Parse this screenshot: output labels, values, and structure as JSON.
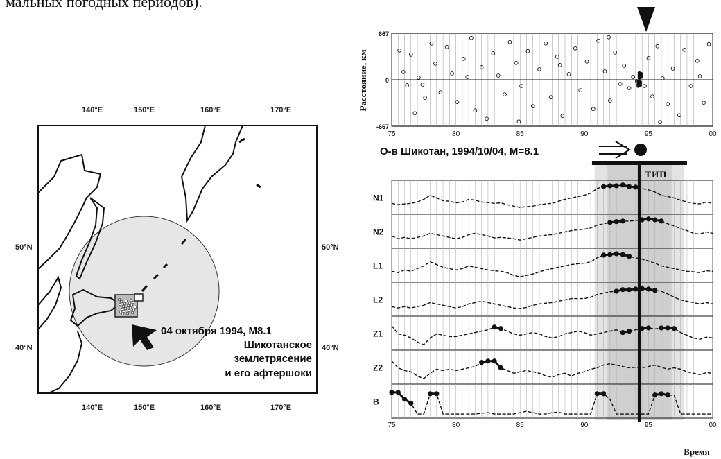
{
  "caption_fragment": "мальных погодных периодов).",
  "map": {
    "lon_labels": [
      "140°E",
      "150°E",
      "160°E",
      "170°E"
    ],
    "lat_labels": [
      "50°N",
      "40°N"
    ],
    "annotation": [
      "04 октября 1994, M8.1",
      "Шикотанское",
      "землетрясение",
      "и его афтершоки"
    ]
  },
  "event_label": "О-в Шикотан, 1994/10/04, M=8.1",
  "tip_label": "ТИП",
  "x_axis_title": "Время",
  "chart_data": [
    {
      "type": "scatter",
      "title": "",
      "ylabel": "Расстояние, км",
      "xlabel": "",
      "xlim": [
        75,
        100
      ],
      "ylim": [
        -667,
        667
      ],
      "x_ticks": [
        "75",
        "80",
        "85",
        "90",
        "95",
        "00"
      ],
      "y_ticks": [
        "667",
        "0",
        "-667"
      ],
      "marked_event_x": 94.3,
      "description_note": null,
      "events": [
        [
          75.6,
          420
        ],
        [
          75.9,
          110
        ],
        [
          76.2,
          -80
        ],
        [
          76.5,
          360
        ],
        [
          77.1,
          30
        ],
        [
          77.4,
          -70
        ],
        [
          77.6,
          -260
        ],
        [
          78.1,
          520
        ],
        [
          78.4,
          230
        ],
        [
          78.8,
          -180
        ],
        [
          79.3,
          470
        ],
        [
          79.7,
          90
        ],
        [
          80.1,
          -320
        ],
        [
          80.6,
          300
        ],
        [
          81.2,
          600
        ],
        [
          81.5,
          -440
        ],
        [
          82.0,
          180
        ],
        [
          82.4,
          -560
        ],
        [
          82.9,
          380
        ],
        [
          83.3,
          60
        ],
        [
          83.8,
          -210
        ],
        [
          84.2,
          540
        ],
        [
          84.7,
          240
        ],
        [
          85.1,
          -90
        ],
        [
          85.6,
          410
        ],
        [
          86.0,
          -380
        ],
        [
          86.5,
          150
        ],
        [
          87.0,
          520
        ],
        [
          87.4,
          -250
        ],
        [
          87.9,
          330
        ],
        [
          88.3,
          -520
        ],
        [
          88.8,
          80
        ],
        [
          89.3,
          450
        ],
        [
          89.7,
          -150
        ],
        [
          90.2,
          260
        ],
        [
          90.7,
          -420
        ],
        [
          91.1,
          560
        ],
        [
          91.6,
          120
        ],
        [
          92.0,
          -300
        ],
        [
          92.4,
          390
        ],
        [
          92.8,
          -60
        ],
        [
          93.1,
          200
        ],
        [
          93.5,
          -120
        ],
        [
          93.8,
          40
        ],
        [
          94.1,
          -20
        ],
        [
          94.4,
          80
        ],
        [
          94.7,
          -90
        ],
        [
          95.0,
          310
        ],
        [
          95.3,
          -240
        ],
        [
          95.7,
          480
        ],
        [
          96.1,
          20
        ],
        [
          96.5,
          -350
        ],
        [
          96.9,
          160
        ],
        [
          97.4,
          -510
        ],
        [
          97.8,
          430
        ],
        [
          98.3,
          -90
        ],
        [
          98.8,
          270
        ],
        [
          99.3,
          -330
        ],
        [
          99.7,
          510
        ],
        [
          76.8,
          -480
        ],
        [
          80.9,
          40
        ],
        [
          84.9,
          -600
        ],
        [
          88.1,
          210
        ],
        [
          91.9,
          610
        ],
        [
          95.9,
          -610
        ],
        [
          99.0,
          50
        ]
      ]
    },
    {
      "type": "line",
      "x": [
        75,
        75.5,
        76,
        76.5,
        77,
        77.5,
        78,
        78.5,
        79,
        79.5,
        80,
        80.5,
        81,
        81.5,
        82,
        82.5,
        83,
        83.5,
        84,
        84.5,
        85,
        85.5,
        86,
        86.5,
        87,
        87.5,
        88,
        88.5,
        89,
        89.5,
        90,
        90.5,
        91,
        91.5,
        92,
        92.5,
        93,
        93.5,
        94,
        94.5,
        95,
        95.5,
        96,
        96.5,
        97,
        97.5,
        98,
        98.5,
        99,
        99.5,
        100
      ],
      "xlim": [
        75,
        100
      ],
      "ylim": [
        0,
        1
      ],
      "x_ticks": [
        "75",
        "80",
        "85",
        "90",
        "95",
        "00"
      ],
      "tip_interval": [
        90.8,
        97.8
      ],
      "event_x": 94.3,
      "series": [
        {
          "name": "N1",
          "values": [
            0.3,
            0.25,
            0.28,
            0.3,
            0.35,
            0.45,
            0.6,
            0.5,
            0.4,
            0.38,
            0.32,
            0.35,
            0.45,
            0.42,
            0.35,
            0.33,
            0.3,
            0.32,
            0.25,
            0.2,
            0.15,
            0.18,
            0.2,
            0.25,
            0.28,
            0.3,
            0.38,
            0.45,
            0.5,
            0.55,
            0.6,
            0.68,
            0.85,
            0.92,
            0.95,
            0.95,
            0.98,
            0.92,
            0.9,
            0.85,
            0.8,
            0.72,
            0.6,
            0.55,
            0.5,
            0.42,
            0.35,
            0.3,
            0.28,
            0.35,
            0.3
          ],
          "highlight": [
            [
              91.5,
              92.5
            ],
            [
              93,
              94
            ]
          ]
        },
        {
          "name": "N2",
          "values": [
            0.35,
            0.25,
            0.3,
            0.25,
            0.3,
            0.35,
            0.45,
            0.4,
            0.35,
            0.3,
            0.25,
            0.3,
            0.4,
            0.45,
            0.4,
            0.35,
            0.28,
            0.3,
            0.28,
            0.25,
            0.2,
            0.25,
            0.3,
            0.35,
            0.38,
            0.4,
            0.45,
            0.5,
            0.55,
            0.58,
            0.6,
            0.65,
            0.75,
            0.8,
            0.85,
            0.88,
            0.9,
            0.9,
            0.92,
            0.95,
            0.98,
            0.95,
            0.9,
            0.8,
            0.72,
            0.62,
            0.55,
            0.45,
            0.42,
            0.5,
            0.45
          ],
          "highlight": [
            [
              92,
              93
            ],
            [
              94.5,
              96
            ]
          ]
        },
        {
          "name": "L1",
          "values": [
            0.3,
            0.25,
            0.35,
            0.3,
            0.4,
            0.5,
            0.65,
            0.55,
            0.45,
            0.4,
            0.35,
            0.4,
            0.5,
            0.45,
            0.4,
            0.35,
            0.32,
            0.3,
            0.25,
            0.15,
            0.1,
            0.15,
            0.2,
            0.28,
            0.35,
            0.4,
            0.45,
            0.5,
            0.55,
            0.58,
            0.6,
            0.65,
            0.8,
            0.9,
            0.92,
            0.95,
            0.92,
            0.85,
            0.8,
            0.75,
            0.68,
            0.6,
            0.5,
            0.45,
            0.4,
            0.35,
            0.3,
            0.28,
            0.25,
            0.32,
            0.3
          ],
          "highlight": [
            [
              91.5,
              93.5
            ]
          ]
        },
        {
          "name": "L2",
          "values": [
            0.25,
            0.2,
            0.25,
            0.2,
            0.25,
            0.3,
            0.4,
            0.35,
            0.3,
            0.25,
            0.2,
            0.25,
            0.35,
            0.4,
            0.45,
            0.4,
            0.35,
            0.3,
            0.25,
            0.2,
            0.18,
            0.22,
            0.3,
            0.35,
            0.38,
            0.4,
            0.45,
            0.5,
            0.55,
            0.55,
            0.55,
            0.6,
            0.7,
            0.75,
            0.8,
            0.82,
            0.88,
            0.88,
            0.9,
            0.92,
            0.9,
            0.85,
            0.82,
            0.72,
            0.6,
            0.5,
            0.45,
            0.4,
            0.35,
            0.4,
            0.35
          ],
          "highlight": [
            [
              92.5,
              95.5
            ]
          ]
        },
        {
          "name": "Z1",
          "values": [
            0.8,
            0.5,
            0.45,
            0.35,
            0.2,
            0.1,
            0.35,
            0.5,
            0.45,
            0.4,
            0.4,
            0.45,
            0.5,
            0.55,
            0.6,
            0.65,
            0.75,
            0.7,
            0.6,
            0.5,
            0.45,
            0.5,
            0.55,
            0.5,
            0.4,
            0.35,
            0.4,
            0.5,
            0.55,
            0.6,
            0.55,
            0.45,
            0.5,
            0.55,
            0.6,
            0.65,
            0.55,
            0.6,
            0.65,
            0.7,
            0.72,
            0.68,
            0.72,
            0.72,
            0.7,
            0.55,
            0.45,
            0.35,
            0.3,
            0.38,
            0.35
          ],
          "highlight": [
            [
              83,
              83.5
            ],
            [
              93,
              93.5
            ],
            [
              94.5,
              95
            ],
            [
              96,
              97
            ]
          ]
        },
        {
          "name": "Z2",
          "values": [
            0.75,
            0.5,
            0.4,
            0.35,
            0.2,
            0.1,
            0.3,
            0.45,
            0.4,
            0.45,
            0.4,
            0.45,
            0.5,
            0.55,
            0.7,
            0.75,
            0.75,
            0.5,
            0.4,
            0.3,
            0.35,
            0.4,
            0.35,
            0.3,
            0.2,
            0.15,
            0.25,
            0.3,
            0.2,
            0.3,
            0.35,
            0.45,
            0.5,
            0.6,
            0.65,
            0.6,
            0.55,
            0.5,
            0.52,
            0.5,
            0.55,
            0.6,
            0.52,
            0.45,
            0.5,
            0.45,
            0.35,
            0.3,
            0.25,
            0.32,
            0.3
          ],
          "highlight": [
            [
              82,
              83.5
            ]
          ]
        },
        {
          "name": "B",
          "values": [
            0.85,
            0.85,
            0.6,
            0.45,
            0.05,
            0.05,
            0.8,
            0.8,
            0.05,
            0.05,
            0.05,
            0.05,
            0.05,
            0.05,
            0.08,
            0.1,
            0.05,
            0.05,
            0.05,
            0.05,
            0.1,
            0.15,
            0.1,
            0.05,
            0.05,
            0.1,
            0.12,
            0.05,
            0.05,
            0.05,
            0.05,
            0.05,
            0.8,
            0.8,
            0.6,
            0.05,
            0.05,
            0.05,
            0.05,
            0.05,
            0.05,
            0.75,
            0.8,
            0.75,
            0.75,
            0.05,
            0.05,
            0.05,
            0.05,
            0.05,
            0.05
          ],
          "highlight": [
            [
              75,
              76.5
            ],
            [
              78,
              78.5
            ],
            [
              91,
              91.5
            ],
            [
              95.5,
              96.5
            ]
          ]
        }
      ]
    }
  ]
}
